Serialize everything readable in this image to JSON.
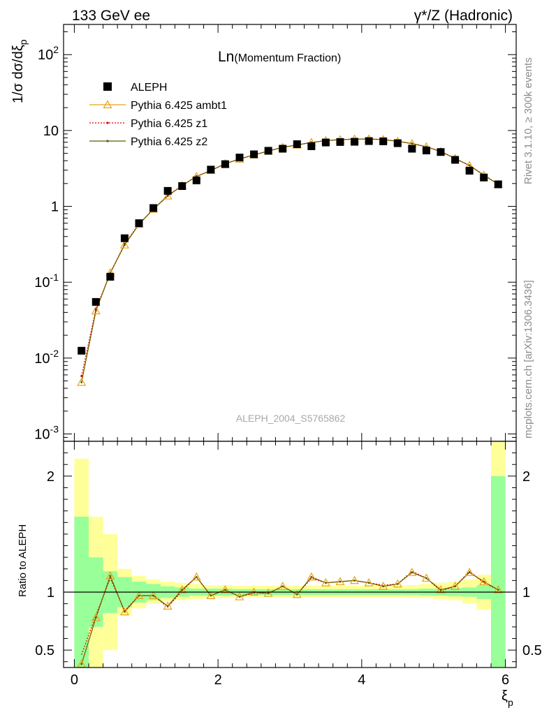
{
  "header": {
    "left_title": "133 GeV ee",
    "right_title": "γ*/Z (Hadronic)"
  },
  "side_labels": {
    "rivet": "Rivet 3.1.10, ≥ 300k events",
    "source": "mcplots.cern.ch [arXiv:1306.3436]"
  },
  "main_panel": {
    "title_prefix": "Ln",
    "title_suffix": "(Momentum Fraction)",
    "ylabel": "1/σ dσ/dξ",
    "ylabel_sub": "p",
    "analysis_tag": "ALEPH_2004_S5765862",
    "y_ticks": [
      {
        "base": "10",
        "exp": "-3",
        "v": 0.001
      },
      {
        "base": "10",
        "exp": "-2",
        "v": 0.01
      },
      {
        "base": "10",
        "exp": "-1",
        "v": 0.1
      },
      {
        "base": "1",
        "exp": "",
        "v": 1
      },
      {
        "base": "10",
        "exp": "",
        "v": 10
      },
      {
        "base": "10",
        "exp": "2",
        "v": 100
      }
    ]
  },
  "ratio_panel": {
    "ylabel": "Ratio to ALEPH",
    "y_ticks": [
      {
        "label": "0.5",
        "v": 0.5
      },
      {
        "label": "1",
        "v": 1
      },
      {
        "label": "2",
        "v": 2
      }
    ]
  },
  "x_axis": {
    "label": "ξ",
    "label_sub": "p",
    "ticks": [
      {
        "label": "0",
        "v": 0
      },
      {
        "label": "2",
        "v": 2
      },
      {
        "label": "4",
        "v": 4
      },
      {
        "label": "6",
        "v": 6
      }
    ]
  },
  "legend": {
    "position": "top-left",
    "entries": [
      {
        "name": "ALEPH",
        "color": "#000000",
        "marker": "square"
      },
      {
        "name": "Pythia 6.425 ambt1",
        "color": "#e8a317",
        "marker": "triangle"
      },
      {
        "name": "Pythia 6.425 z1",
        "color": "#e00000",
        "marker": "dotted"
      },
      {
        "name": "Pythia 6.425 z2",
        "color": "#5a5a00",
        "marker": "small-dot"
      }
    ]
  },
  "chart_data": {
    "type": "scatter",
    "title": "Ln(Momentum Fraction)",
    "xlabel": "ξp",
    "ylabel": "1/σ dσ/dξp",
    "xlim": [
      -0.15,
      6.15
    ],
    "ylim": [
      0.0008,
      250
    ],
    "y_scale": "log",
    "ratio_ylim": [
      0.35,
      2.3
    ],
    "x": [
      0.1,
      0.3,
      0.5,
      0.7,
      0.9,
      1.1,
      1.3,
      1.5,
      1.7,
      1.9,
      2.1,
      2.3,
      2.5,
      2.7,
      2.9,
      3.1,
      3.3,
      3.5,
      3.7,
      3.9,
      4.1,
      4.3,
      4.5,
      4.7,
      4.9,
      5.1,
      5.3,
      5.5,
      5.7,
      5.9
    ],
    "series": [
      {
        "name": "ALEPH",
        "values": [
          0.0125,
          0.055,
          0.118,
          0.38,
          0.6,
          0.95,
          1.6,
          1.85,
          2.2,
          3.05,
          3.6,
          4.4,
          4.85,
          5.4,
          5.75,
          6.6,
          6.2,
          6.95,
          7.05,
          7.1,
          7.25,
          7.2,
          6.8,
          5.75,
          5.45,
          5.2,
          4.1,
          2.95,
          2.4,
          1.95
        ]
      },
      {
        "name": "Pythia 6.425 ambt1",
        "values": [
          0.0048,
          0.042,
          0.133,
          0.31,
          0.58,
          0.92,
          1.37,
          1.88,
          2.48,
          2.97,
          3.65,
          4.2,
          4.77,
          5.35,
          6.0,
          6.45,
          6.95,
          7.35,
          7.55,
          7.7,
          7.72,
          7.58,
          7.2,
          6.72,
          6.1,
          5.28,
          4.28,
          3.45,
          2.58,
          1.95
        ]
      },
      {
        "name": "Pythia 6.425 z1",
        "values": [
          0.0058,
          0.044,
          0.131,
          0.32,
          0.585,
          0.92,
          1.39,
          1.87,
          2.5,
          2.95,
          3.65,
          4.22,
          4.78,
          5.36,
          6.02,
          6.45,
          6.97,
          7.37,
          7.57,
          7.72,
          7.74,
          7.6,
          7.22,
          6.74,
          6.12,
          5.29,
          4.28,
          3.47,
          2.6,
          1.96
        ]
      },
      {
        "name": "Pythia 6.425 z2",
        "values": [
          0.0048,
          0.042,
          0.133,
          0.31,
          0.58,
          0.92,
          1.37,
          1.88,
          2.48,
          2.97,
          3.65,
          4.2,
          4.77,
          5.35,
          6.0,
          6.45,
          6.95,
          7.35,
          7.55,
          7.7,
          7.72,
          7.58,
          7.2,
          6.72,
          6.1,
          5.28,
          4.28,
          3.45,
          2.58,
          1.95
        ]
      }
    ],
    "ratio_series": [
      {
        "name": "Pythia 6.425 ambt1",
        "values": [
          0.38,
          0.78,
          1.14,
          0.83,
          0.97,
          0.97,
          0.88,
          1.02,
          1.13,
          0.97,
          1.02,
          0.96,
          1.0,
          0.99,
          1.05,
          0.98,
          1.13,
          1.08,
          1.09,
          1.1,
          1.08,
          1.05,
          1.07,
          1.17,
          1.12,
          1.02,
          1.05,
          1.17,
          1.09,
          1.02
        ]
      },
      {
        "name": "Pythia 6.425 z1",
        "values": [
          0.46,
          0.8,
          1.12,
          0.84,
          0.97,
          0.97,
          0.87,
          1.01,
          1.13,
          0.97,
          1.02,
          0.96,
          0.99,
          0.99,
          1.05,
          0.98,
          1.12,
          1.08,
          1.09,
          1.1,
          1.08,
          1.06,
          1.07,
          1.18,
          1.12,
          1.01,
          1.05,
          1.18,
          1.08,
          1.02
        ]
      },
      {
        "name": "Pythia 6.425 z2",
        "values": [
          0.38,
          0.78,
          1.14,
          0.83,
          0.97,
          0.97,
          0.88,
          1.02,
          1.13,
          0.97,
          1.02,
          0.96,
          1.0,
          0.99,
          1.05,
          0.98,
          1.13,
          1.08,
          1.09,
          1.1,
          1.08,
          1.05,
          1.07,
          1.17,
          1.12,
          1.02,
          1.05,
          1.17,
          1.09,
          1.02
        ]
      }
    ],
    "ratio_bands": {
      "bins": [
        [
          0.0,
          0.2
        ],
        [
          0.2,
          0.4
        ],
        [
          0.4,
          0.6
        ],
        [
          0.6,
          0.8
        ],
        [
          0.8,
          1.0
        ],
        [
          1.0,
          1.2
        ],
        [
          1.2,
          1.4
        ],
        [
          1.4,
          1.6
        ],
        [
          1.6,
          1.8
        ],
        [
          1.8,
          2.0
        ],
        [
          2.0,
          2.2
        ],
        [
          2.2,
          2.4
        ],
        [
          2.4,
          2.6
        ],
        [
          2.6,
          2.8
        ],
        [
          2.8,
          3.0
        ],
        [
          3.0,
          3.2
        ],
        [
          3.2,
          3.4
        ],
        [
          3.4,
          3.6
        ],
        [
          3.6,
          3.8
        ],
        [
          3.8,
          4.0
        ],
        [
          4.0,
          4.2
        ],
        [
          4.2,
          4.4
        ],
        [
          4.4,
          4.6
        ],
        [
          4.6,
          4.8
        ],
        [
          4.8,
          5.0
        ],
        [
          5.0,
          5.2
        ],
        [
          5.2,
          5.4
        ],
        [
          5.4,
          5.6
        ],
        [
          5.6,
          5.8
        ],
        [
          5.8,
          6.0
        ]
      ],
      "stat_color": "#99ff99",
      "total_color": "#ffff99",
      "stat_lo": [
        0.35,
        0.7,
        0.82,
        0.87,
        0.91,
        0.93,
        0.95,
        0.96,
        0.97,
        0.97,
        0.97,
        0.975,
        0.975,
        0.975,
        0.975,
        0.975,
        0.975,
        0.975,
        0.975,
        0.975,
        0.975,
        0.975,
        0.975,
        0.975,
        0.97,
        0.97,
        0.965,
        0.96,
        0.94,
        0.35
      ],
      "stat_hi": [
        1.65,
        1.3,
        1.18,
        1.13,
        1.09,
        1.07,
        1.05,
        1.04,
        1.03,
        1.03,
        1.03,
        1.025,
        1.025,
        1.025,
        1.025,
        1.025,
        1.025,
        1.025,
        1.025,
        1.025,
        1.025,
        1.025,
        1.025,
        1.025,
        1.03,
        1.03,
        1.035,
        1.04,
        1.06,
        2.0
      ],
      "tot_lo": [
        0.35,
        0.35,
        0.5,
        0.8,
        0.86,
        0.9,
        0.92,
        0.93,
        0.94,
        0.95,
        0.95,
        0.955,
        0.955,
        0.955,
        0.955,
        0.955,
        0.955,
        0.955,
        0.955,
        0.955,
        0.955,
        0.955,
        0.955,
        0.95,
        0.95,
        0.94,
        0.93,
        0.9,
        0.85,
        0.35
      ],
      "tot_hi": [
        2.15,
        1.65,
        1.5,
        1.2,
        1.14,
        1.11,
        1.09,
        1.08,
        1.07,
        1.06,
        1.06,
        1.055,
        1.055,
        1.055,
        1.055,
        1.055,
        1.055,
        1.055,
        1.055,
        1.055,
        1.055,
        1.055,
        1.06,
        1.06,
        1.07,
        1.08,
        1.09,
        1.11,
        1.15,
        2.3
      ]
    }
  }
}
